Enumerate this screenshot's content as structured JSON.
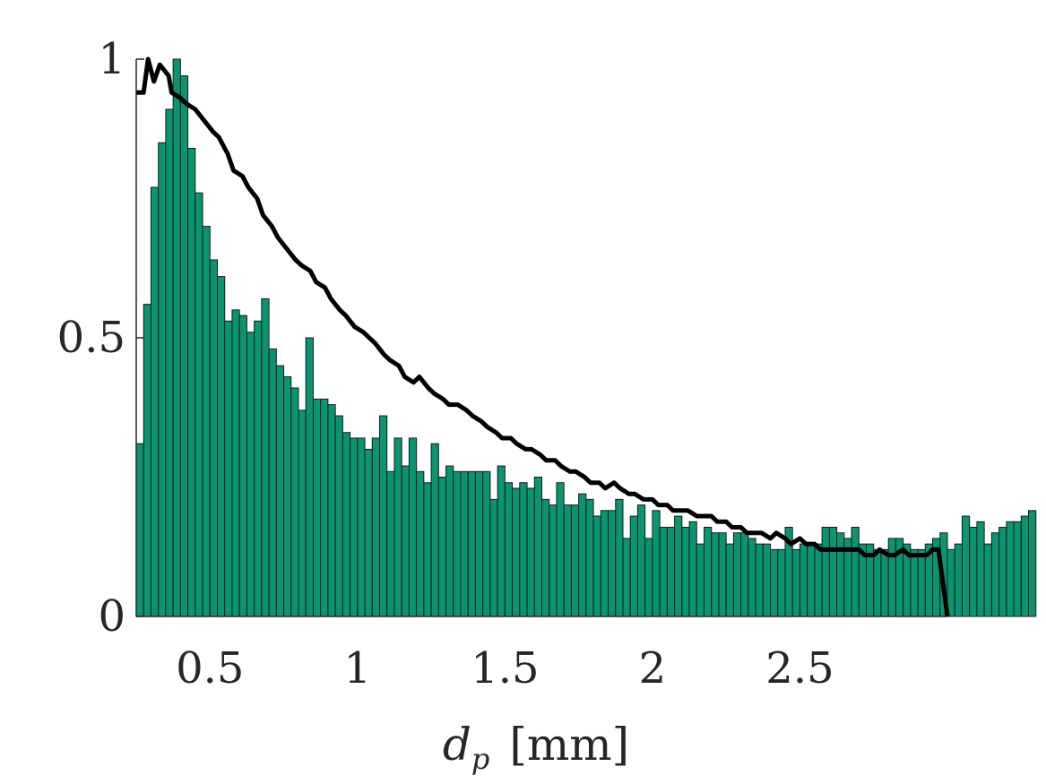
{
  "chart_data": {
    "type": "bar",
    "xlabel": "d_p [mm]",
    "xlabel_parts": {
      "symbol": "d",
      "subscript": "p",
      "unit": "[mm]"
    },
    "xlim": [
      0.25,
      3.0
    ],
    "ylim": [
      0,
      1
    ],
    "xticks": [
      0.5,
      1,
      1.5,
      2,
      2.5
    ],
    "xtick_labels": [
      "0.5",
      "1",
      "1.5",
      "2",
      "2.5"
    ],
    "yticks": [
      0,
      0.5,
      1
    ],
    "ytick_labels": [
      "0",
      "0.5",
      "1"
    ],
    "grid": false,
    "bin_start": 0.25,
    "bin_width": 0.025,
    "bar_color": "#0a9470",
    "bar_edge_color": "#1a1a1a",
    "line_color": "#000000",
    "series": [
      {
        "kind": "histogram",
        "values": [
          0.31,
          0.56,
          0.77,
          0.85,
          0.91,
          1.0,
          0.97,
          0.84,
          0.76,
          0.7,
          0.64,
          0.61,
          0.53,
          0.55,
          0.54,
          0.51,
          0.53,
          0.57,
          0.48,
          0.45,
          0.43,
          0.41,
          0.37,
          0.5,
          0.39,
          0.39,
          0.38,
          0.36,
          0.33,
          0.32,
          0.32,
          0.3,
          0.32,
          0.36,
          0.26,
          0.32,
          0.27,
          0.32,
          0.26,
          0.24,
          0.31,
          0.25,
          0.27,
          0.26,
          0.26,
          0.26,
          0.26,
          0.26,
          0.21,
          0.27,
          0.24,
          0.23,
          0.24,
          0.23,
          0.25,
          0.21,
          0.2,
          0.24,
          0.2,
          0.2,
          0.22,
          0.21,
          0.18,
          0.19,
          0.19,
          0.21,
          0.14,
          0.18,
          0.2,
          0.14,
          0.19,
          0.16,
          0.16,
          0.18,
          0.16,
          0.17,
          0.13,
          0.16,
          0.15,
          0.15,
          0.13,
          0.15,
          0.15,
          0.14,
          0.13,
          0.13,
          0.12,
          0.12,
          0.16,
          0.12,
          0.13,
          0.13,
          0.13,
          0.16,
          0.16,
          0.15,
          0.14,
          0.16,
          0.13,
          0.13,
          0.12,
          0.12,
          0.14,
          0.14,
          0.13,
          0.12,
          0.12,
          0.13,
          0.14,
          0.15,
          0.12,
          0.13,
          0.18,
          0.16,
          0.17,
          0.13,
          0.15,
          0.16,
          0.17,
          0.17,
          0.18,
          0.19
        ]
      },
      {
        "kind": "line",
        "x": [
          0.25,
          0.275,
          0.29,
          0.31,
          0.33,
          0.36,
          0.37,
          0.4,
          0.42,
          0.45,
          0.48,
          0.51,
          0.53,
          0.56,
          0.58,
          0.61,
          0.63,
          0.66,
          0.68,
          0.71,
          0.73,
          0.76,
          0.79,
          0.81,
          0.84,
          0.86,
          0.89,
          0.91,
          0.94,
          0.96,
          0.99,
          1.02,
          1.04,
          1.06,
          1.09,
          1.11,
          1.14,
          1.16,
          1.19,
          1.21,
          1.24,
          1.26,
          1.29,
          1.31,
          1.34,
          1.37,
          1.39,
          1.42,
          1.44,
          1.47,
          1.49,
          1.52,
          1.54,
          1.57,
          1.59,
          1.62,
          1.64,
          1.67,
          1.69,
          1.72,
          1.74,
          1.77,
          1.79,
          1.82,
          1.84,
          1.87,
          1.89,
          1.92,
          1.94,
          1.97,
          2.0,
          2.02,
          2.05,
          2.07,
          2.1,
          2.12,
          2.15,
          2.17,
          2.2,
          2.22,
          2.25,
          2.27,
          2.3,
          2.32,
          2.35,
          2.37,
          2.4,
          2.42,
          2.45,
          2.47,
          2.5,
          2.52,
          2.55,
          2.57,
          2.6,
          2.62,
          2.65,
          2.67,
          2.7,
          2.72,
          2.75,
          2.77,
          2.8,
          2.82,
          2.85,
          2.87,
          2.9,
          2.93,
          2.95,
          2.97,
          3.0
        ],
        "y": [
          0.94,
          0.94,
          1.0,
          0.96,
          0.99,
          0.97,
          0.94,
          0.93,
          0.92,
          0.91,
          0.89,
          0.87,
          0.86,
          0.83,
          0.8,
          0.79,
          0.77,
          0.75,
          0.72,
          0.7,
          0.68,
          0.66,
          0.64,
          0.63,
          0.62,
          0.6,
          0.59,
          0.57,
          0.55,
          0.54,
          0.52,
          0.51,
          0.5,
          0.49,
          0.47,
          0.46,
          0.45,
          0.43,
          0.42,
          0.43,
          0.41,
          0.4,
          0.39,
          0.38,
          0.38,
          0.37,
          0.36,
          0.35,
          0.34,
          0.33,
          0.32,
          0.32,
          0.31,
          0.3,
          0.3,
          0.29,
          0.28,
          0.28,
          0.27,
          0.26,
          0.26,
          0.25,
          0.24,
          0.24,
          0.23,
          0.24,
          0.23,
          0.22,
          0.22,
          0.21,
          0.21,
          0.2,
          0.2,
          0.19,
          0.19,
          0.19,
          0.18,
          0.18,
          0.18,
          0.17,
          0.17,
          0.16,
          0.16,
          0.15,
          0.15,
          0.15,
          0.14,
          0.15,
          0.14,
          0.13,
          0.14,
          0.13,
          0.13,
          0.12,
          0.12,
          0.12,
          0.12,
          0.12,
          0.12,
          0.11,
          0.11,
          0.12,
          0.11,
          0.11,
          0.12,
          0.11,
          0.11,
          0.11,
          0.12,
          0.12,
          0.0
        ]
      }
    ]
  }
}
